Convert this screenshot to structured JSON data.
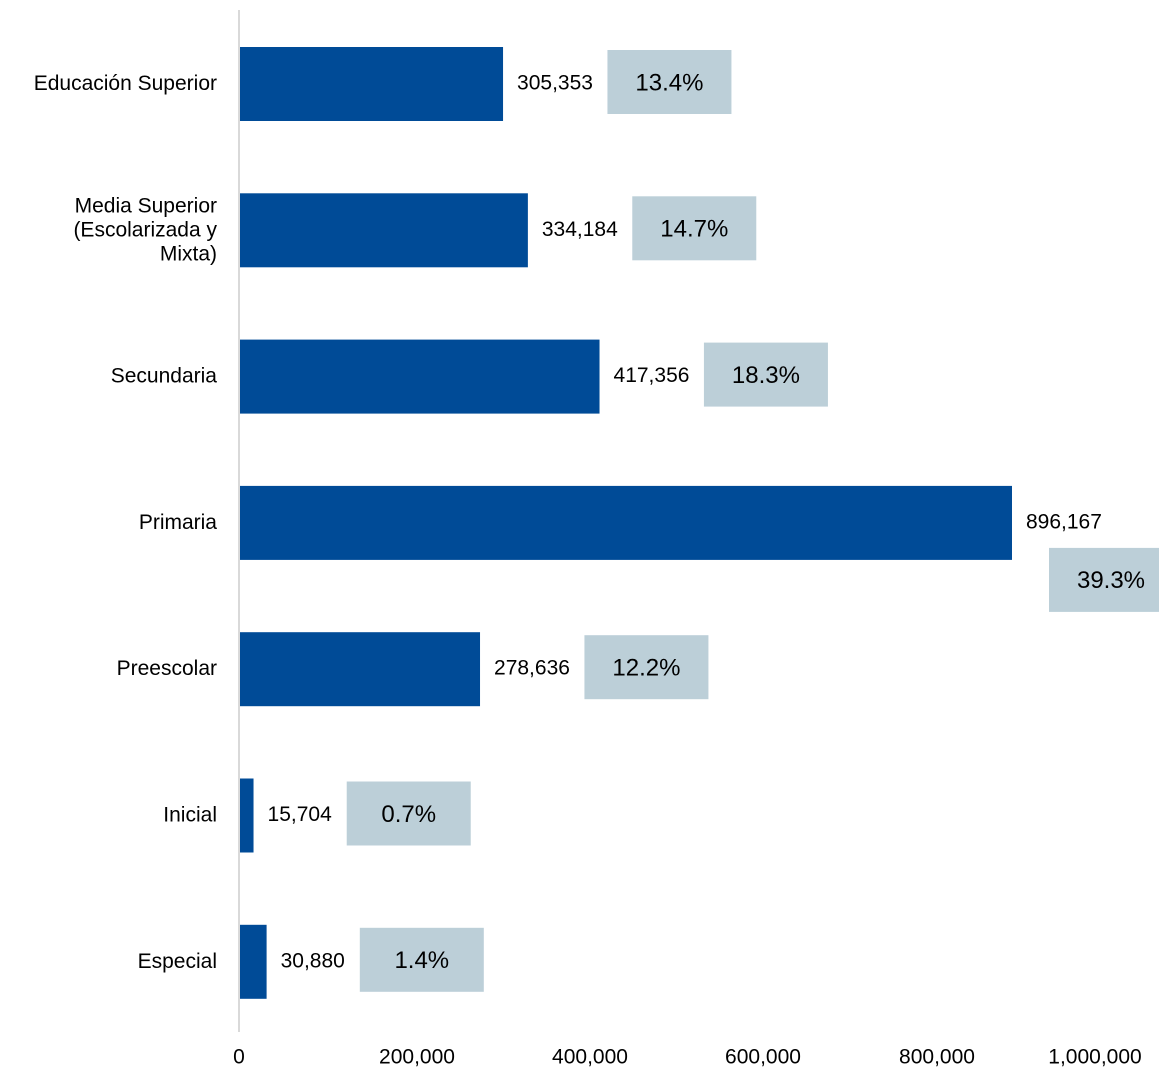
{
  "chart_data": {
    "type": "bar",
    "orientation": "horizontal",
    "categories": [
      "Educación Superior",
      "Media Superior (Escolarizada y Mixta)",
      "Secundaria",
      "Primaria",
      "Preescolar",
      "Inicial",
      "Especial"
    ],
    "category_lines": [
      [
        "Educación Superior"
      ],
      [
        "Media Superior",
        "(Escolarizada y",
        "Mixta)"
      ],
      [
        "Secundaria"
      ],
      [
        "Primaria"
      ],
      [
        "Preescolar"
      ],
      [
        "Inicial"
      ],
      [
        "Especial"
      ]
    ],
    "values": [
      305353,
      334184,
      417356,
      896167,
      278636,
      15704,
      30880
    ],
    "value_labels": [
      "305,353",
      "334,184",
      "417,356",
      "896,167",
      "278,636",
      "15,704",
      "30,880"
    ],
    "percent_labels": [
      "13.4%",
      "14.7%",
      "18.3%",
      "39.3%",
      "12.2%",
      "0.7%",
      "1.4%"
    ],
    "title": "",
    "xlabel": "",
    "ylabel": "",
    "xlim": [
      0,
      1000000
    ],
    "x_ticks": [
      0,
      200000,
      400000,
      600000,
      800000,
      1000000
    ],
    "x_tick_labels": [
      "0",
      "200,000",
      "400,000",
      "600,000",
      "800,000",
      "1,000,000"
    ],
    "grid": false,
    "legend": "none",
    "colors": {
      "bar": "#004B97",
      "percent_box": "#BCCFD8",
      "axis": "#D9D9D9"
    }
  }
}
